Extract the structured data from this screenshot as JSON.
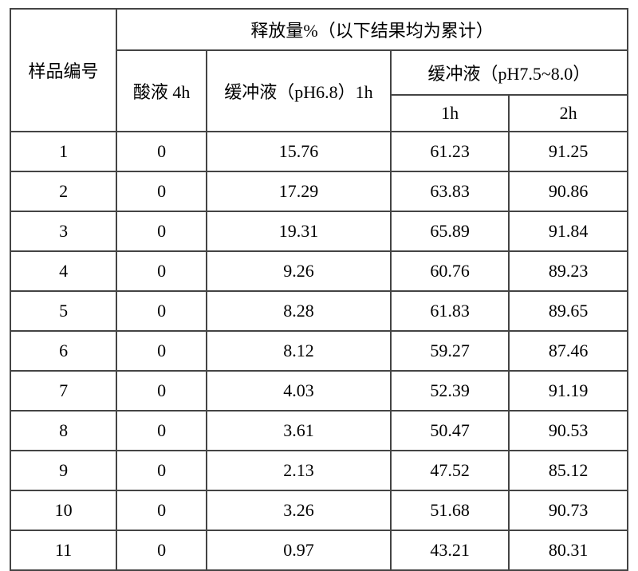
{
  "table": {
    "type": "table",
    "border_color": "#444444",
    "background_color": "#ffffff",
    "text_color": "#000000",
    "font_family": "SimSun",
    "font_size_pt": 16,
    "columns": {
      "sample_no": "样品编号",
      "release_title": "释放量%（以下结果均为累计）",
      "acid_4h": "酸液 4h",
      "buffer_ph68_1h": "缓冲液（pH6.8）1h",
      "buffer_ph75_80": "缓冲液（pH7.5~8.0）",
      "sub_1h": "1h",
      "sub_2h": "2h"
    },
    "col_widths_pct": [
      17.2,
      14.6,
      29.8,
      19.2,
      19.2
    ],
    "rows": [
      {
        "no": "1",
        "acid": "0",
        "b68": "15.76",
        "b75_1h": "61.23",
        "b75_2h": "91.25"
      },
      {
        "no": "2",
        "acid": "0",
        "b68": "17.29",
        "b75_1h": "63.83",
        "b75_2h": "90.86"
      },
      {
        "no": "3",
        "acid": "0",
        "b68": "19.31",
        "b75_1h": "65.89",
        "b75_2h": "91.84"
      },
      {
        "no": "4",
        "acid": "0",
        "b68": "9.26",
        "b75_1h": "60.76",
        "b75_2h": "89.23"
      },
      {
        "no": "5",
        "acid": "0",
        "b68": "8.28",
        "b75_1h": "61.83",
        "b75_2h": "89.65"
      },
      {
        "no": "6",
        "acid": "0",
        "b68": "8.12",
        "b75_1h": "59.27",
        "b75_2h": "87.46"
      },
      {
        "no": "7",
        "acid": "0",
        "b68": "4.03",
        "b75_1h": "52.39",
        "b75_2h": "91.19"
      },
      {
        "no": "8",
        "acid": "0",
        "b68": "3.61",
        "b75_1h": "50.47",
        "b75_2h": "90.53"
      },
      {
        "no": "9",
        "acid": "0",
        "b68": "2.13",
        "b75_1h": "47.52",
        "b75_2h": "85.12"
      },
      {
        "no": "10",
        "acid": "0",
        "b68": "3.26",
        "b75_1h": "51.68",
        "b75_2h": "90.73"
      },
      {
        "no": "11",
        "acid": "0",
        "b68": "0.97",
        "b75_1h": "43.21",
        "b75_2h": "80.31"
      }
    ]
  }
}
